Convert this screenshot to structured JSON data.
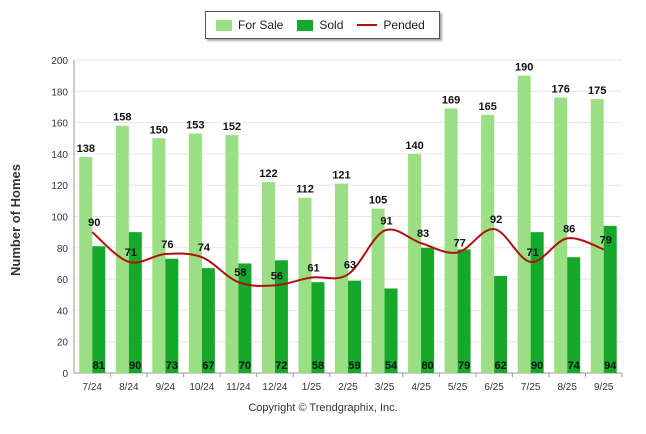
{
  "legend": {
    "for_sale": "For Sale",
    "sold": "Sold",
    "pended": "Pended"
  },
  "copyright": "Copyright © Trendgraphix, Inc.",
  "chart_data": {
    "type": "bar",
    "title": "",
    "xlabel": "",
    "ylabel": "Number of Homes",
    "ylim": [
      0,
      200
    ],
    "yticks": [
      0,
      20,
      40,
      60,
      80,
      100,
      120,
      140,
      160,
      180,
      200
    ],
    "categories": [
      "7/24",
      "8/24",
      "9/24",
      "10/24",
      "11/24",
      "12/24",
      "1/25",
      "2/25",
      "3/25",
      "4/25",
      "5/25",
      "6/25",
      "7/25",
      "8/25",
      "9/25"
    ],
    "series": [
      {
        "name": "For Sale",
        "type": "bar",
        "color": "#9adf83",
        "values": [
          138,
          158,
          150,
          153,
          152,
          122,
          112,
          121,
          105,
          140,
          169,
          165,
          190,
          176,
          175
        ]
      },
      {
        "name": "Sold",
        "type": "bar",
        "color": "#16a82b",
        "values": [
          81,
          90,
          73,
          67,
          70,
          72,
          58,
          59,
          54,
          80,
          79,
          62,
          90,
          74,
          94
        ]
      },
      {
        "name": "Pended",
        "type": "line",
        "color": "#b01010",
        "values": [
          90,
          71,
          76,
          74,
          58,
          56,
          61,
          63,
          91,
          83,
          77,
          92,
          71,
          86,
          79
        ]
      }
    ]
  }
}
